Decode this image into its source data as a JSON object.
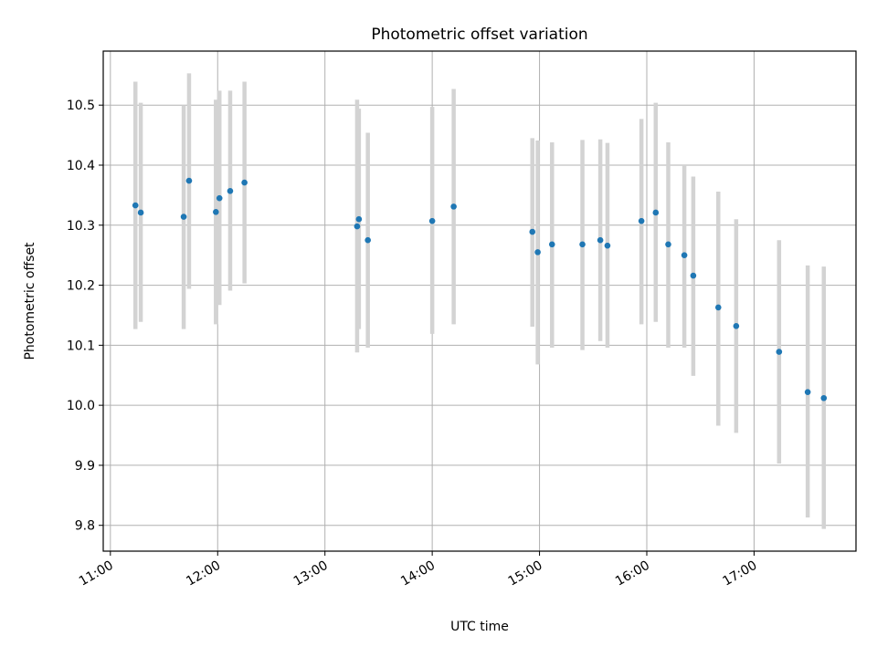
{
  "chart_data": {
    "type": "scatter",
    "title": "Photometric offset variation",
    "xlabel": "UTC time",
    "ylabel": "Photometric offset",
    "x_axis_type": "time",
    "xlim": [
      "10:56",
      "17:57"
    ],
    "ylim": [
      9.757,
      10.59
    ],
    "x_ticks": [
      "11:00",
      "12:00",
      "13:00",
      "14:00",
      "15:00",
      "16:00",
      "17:00"
    ],
    "y_ticks": [
      "9.8",
      "9.9",
      "10.0",
      "10.1",
      "10.2",
      "10.3",
      "10.4",
      "10.5"
    ],
    "grid": true,
    "point_color": "#1f77b4",
    "errorbar_color": "#d3d3d3",
    "points": [
      {
        "t": "11:14",
        "y": 10.333,
        "lo": 10.127,
        "hi": 10.539
      },
      {
        "t": "11:17",
        "y": 10.321,
        "lo": 10.139,
        "hi": 10.504
      },
      {
        "t": "11:41",
        "y": 10.314,
        "lo": 10.127,
        "hi": 10.5
      },
      {
        "t": "11:44",
        "y": 10.374,
        "lo": 10.194,
        "hi": 10.553
      },
      {
        "t": "11:59",
        "y": 10.322,
        "lo": 10.135,
        "hi": 10.509
      },
      {
        "t": "12:01",
        "y": 10.345,
        "lo": 10.167,
        "hi": 10.524
      },
      {
        "t": "12:07",
        "y": 10.357,
        "lo": 10.191,
        "hi": 10.524
      },
      {
        "t": "12:15",
        "y": 10.371,
        "lo": 10.203,
        "hi": 10.539
      },
      {
        "t": "13:18",
        "y": 10.298,
        "lo": 10.088,
        "hi": 10.509
      },
      {
        "t": "13:19",
        "y": 10.31,
        "lo": 10.127,
        "hi": 10.494
      },
      {
        "t": "13:24",
        "y": 10.275,
        "lo": 10.096,
        "hi": 10.454
      },
      {
        "t": "14:00",
        "y": 10.307,
        "lo": 10.119,
        "hi": 10.497
      },
      {
        "t": "14:12",
        "y": 10.331,
        "lo": 10.135,
        "hi": 10.527
      },
      {
        "t": "14:56",
        "y": 10.289,
        "lo": 10.131,
        "hi": 10.445
      },
      {
        "t": "14:59",
        "y": 10.255,
        "lo": 10.068,
        "hi": 10.441
      },
      {
        "t": "15:07",
        "y": 10.268,
        "lo": 10.096,
        "hi": 10.438
      },
      {
        "t": "15:24",
        "y": 10.268,
        "lo": 10.092,
        "hi": 10.442
      },
      {
        "t": "15:34",
        "y": 10.275,
        "lo": 10.107,
        "hi": 10.443
      },
      {
        "t": "15:38",
        "y": 10.266,
        "lo": 10.096,
        "hi": 10.437
      },
      {
        "t": "15:57",
        "y": 10.307,
        "lo": 10.135,
        "hi": 10.477
      },
      {
        "t": "16:05",
        "y": 10.321,
        "lo": 10.139,
        "hi": 10.504
      },
      {
        "t": "16:12",
        "y": 10.268,
        "lo": 10.096,
        "hi": 10.438
      },
      {
        "t": "16:21",
        "y": 10.25,
        "lo": 10.096,
        "hi": 10.4
      },
      {
        "t": "16:26",
        "y": 10.216,
        "lo": 10.049,
        "hi": 10.381
      },
      {
        "t": "16:40",
        "y": 10.163,
        "lo": 9.966,
        "hi": 10.356
      },
      {
        "t": "16:50",
        "y": 10.132,
        "lo": 9.954,
        "hi": 10.31
      },
      {
        "t": "17:14",
        "y": 10.089,
        "lo": 9.903,
        "hi": 10.275
      },
      {
        "t": "17:30",
        "y": 10.022,
        "lo": 9.813,
        "hi": 10.233
      },
      {
        "t": "17:39",
        "y": 10.012,
        "lo": 9.794,
        "hi": 10.231
      }
    ]
  }
}
